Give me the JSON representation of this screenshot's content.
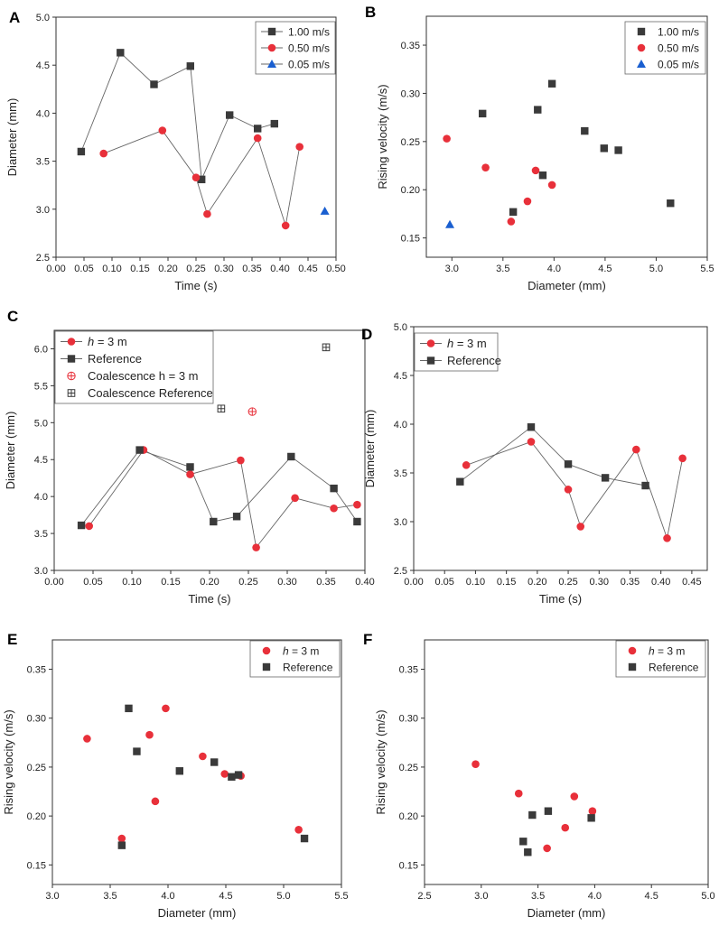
{
  "chart_data": [
    {
      "panel": "A",
      "type": "line",
      "xlabel": "Time (s)",
      "ylabel": "Diameter (mm)",
      "xlim": [
        0.0,
        0.5
      ],
      "ylim": [
        2.5,
        5.0
      ],
      "xticks": [
        "0.00",
        "0.05",
        "0.10",
        "0.15",
        "0.20",
        "0.25",
        "0.30",
        "0.35",
        "0.40",
        "0.45",
        "0.50"
      ],
      "yticks": [
        "2.5",
        "3.0",
        "3.5",
        "4.0",
        "4.5",
        "5.0"
      ],
      "legend_position": "top-right",
      "series": [
        {
          "name": "1.00 m/s",
          "marker": "square",
          "color": "#3a3a3a",
          "line": true,
          "x": [
            0.045,
            0.115,
            0.175,
            0.24,
            0.26,
            0.31,
            0.36,
            0.39
          ],
          "y": [
            3.6,
            4.63,
            4.3,
            4.49,
            3.31,
            3.98,
            3.84,
            3.89
          ]
        },
        {
          "name": "0.50 m/s",
          "marker": "circle",
          "color": "#e8303a",
          "line": true,
          "x": [
            0.085,
            0.19,
            0.25,
            0.27,
            0.36,
            0.41,
            0.435
          ],
          "y": [
            3.58,
            3.82,
            3.33,
            2.95,
            3.74,
            2.83,
            3.65
          ]
        },
        {
          "name": "0.05 m/s",
          "marker": "triangle",
          "color": "#1a5fd0",
          "line": true,
          "x": [
            0.48
          ],
          "y": [
            2.98
          ]
        }
      ]
    },
    {
      "panel": "B",
      "type": "scatter",
      "xlabel": "Diameter (mm)",
      "ylabel": "Rising velocity (m/s)",
      "xlim": [
        2.75,
        5.5
      ],
      "ylim": [
        0.13,
        0.38
      ],
      "xticks": [
        "3.0",
        "3.5",
        "4.0",
        "4.5",
        "5.0",
        "5.5"
      ],
      "yticks": [
        "0.15",
        "0.20",
        "0.25",
        "0.30",
        "0.35"
      ],
      "legend_position": "top-right",
      "series": [
        {
          "name": "1.00 m/s",
          "marker": "square",
          "color": "#3a3a3a",
          "line": false,
          "x": [
            3.3,
            3.6,
            3.84,
            3.89,
            3.98,
            4.3,
            4.49,
            4.63,
            5.14
          ],
          "y": [
            0.279,
            0.177,
            0.283,
            0.215,
            0.31,
            0.261,
            0.243,
            0.241,
            0.186
          ]
        },
        {
          "name": "0.50 m/s",
          "marker": "circle",
          "color": "#e8303a",
          "line": false,
          "x": [
            2.95,
            3.33,
            3.58,
            3.74,
            3.82,
            3.98
          ],
          "y": [
            0.253,
            0.223,
            0.167,
            0.188,
            0.22,
            0.205
          ]
        },
        {
          "name": "0.05 m/s",
          "marker": "triangle",
          "color": "#1a5fd0",
          "line": false,
          "x": [
            2.98
          ],
          "y": [
            0.164
          ]
        }
      ]
    },
    {
      "panel": "C",
      "type": "line",
      "xlabel": "Time (s)",
      "ylabel": "Diameter (mm)",
      "xlim": [
        0.0,
        0.4
      ],
      "ylim": [
        3.0,
        6.25
      ],
      "xticks": [
        "0.00",
        "0.05",
        "0.10",
        "0.15",
        "0.20",
        "0.25",
        "0.30",
        "0.35",
        "0.40"
      ],
      "yticks": [
        "3.0",
        "3.5",
        "4.0",
        "4.5",
        "5.0",
        "5.5",
        "6.0"
      ],
      "legend_position": "top-left",
      "series": [
        {
          "name": "h = 3 m",
          "italic_prefix": "h",
          "marker": "circle",
          "color": "#e8303a",
          "line": true,
          "x": [
            0.045,
            0.115,
            0.175,
            0.24,
            0.26,
            0.31,
            0.36,
            0.39
          ],
          "y": [
            3.6,
            4.63,
            4.3,
            4.49,
            3.31,
            3.98,
            3.84,
            3.89
          ]
        },
        {
          "name": "Reference",
          "marker": "square",
          "color": "#3a3a3a",
          "line": true,
          "x": [
            0.035,
            0.11,
            0.175,
            0.205,
            0.235,
            0.305,
            0.36,
            0.39
          ],
          "y": [
            3.61,
            4.63,
            4.4,
            3.66,
            3.73,
            4.54,
            4.11,
            3.66
          ]
        },
        {
          "name": "Coalescence h = 3 m",
          "italic_prefix": "h",
          "marker": "circle-plus",
          "color": "#e8303a",
          "line": false,
          "x": [
            0.255
          ],
          "y": [
            5.15
          ]
        },
        {
          "name": "Coalescence Reference",
          "marker": "square-plus",
          "color": "#3a3a3a",
          "line": false,
          "x": [
            0.215
          ],
          "y": [
            5.19
          ]
        },
        {
          "name": "",
          "marker": "square-plus",
          "color": "#3a3a3a",
          "line": false,
          "legend": false,
          "x": [
            0.35
          ],
          "y": [
            6.02
          ]
        }
      ]
    },
    {
      "panel": "D",
      "type": "line",
      "xlabel": "Time (s)",
      "ylabel": "Diameter (mm)",
      "xlim": [
        0.0,
        0.475
      ],
      "ylim": [
        2.5,
        5.0
      ],
      "xticks": [
        "0.00",
        "0.05",
        "0.10",
        "0.15",
        "0.20",
        "0.25",
        "0.30",
        "0.35",
        "0.40",
        "0.45"
      ],
      "yticks": [
        "2.5",
        "3.0",
        "3.5",
        "4.0",
        "4.5",
        "5.0"
      ],
      "legend_position": "top-left",
      "series": [
        {
          "name": "h = 3 m",
          "italic_prefix": "h",
          "marker": "circle",
          "color": "#e8303a",
          "line": true,
          "x": [
            0.085,
            0.19,
            0.25,
            0.27,
            0.36,
            0.41,
            0.435
          ],
          "y": [
            3.58,
            3.82,
            3.33,
            2.95,
            3.74,
            2.83,
            3.65
          ]
        },
        {
          "name": "Reference",
          "marker": "square",
          "color": "#3a3a3a",
          "line": true,
          "x": [
            0.075,
            0.19,
            0.25,
            0.31,
            0.375
          ],
          "y": [
            3.41,
            3.97,
            3.59,
            3.45,
            3.37
          ]
        }
      ]
    },
    {
      "panel": "E",
      "type": "scatter",
      "xlabel": "Diameter (mm)",
      "ylabel": "Rising velocity (m/s)",
      "xlim": [
        3.0,
        5.5
      ],
      "ylim": [
        0.13,
        0.38
      ],
      "xticks": [
        "3.0",
        "3.5",
        "4.0",
        "4.5",
        "5.0",
        "5.5"
      ],
      "yticks": [
        "0.15",
        "0.20",
        "0.25",
        "0.30",
        "0.35"
      ],
      "legend_position": "top-right",
      "series": [
        {
          "name": "h = 3 m",
          "italic_prefix": "h",
          "marker": "circle",
          "color": "#e8303a",
          "line": false,
          "x": [
            3.3,
            3.6,
            3.84,
            3.89,
            3.98,
            4.3,
            4.49,
            4.63,
            5.13
          ],
          "y": [
            0.279,
            0.177,
            0.283,
            0.215,
            0.31,
            0.261,
            0.243,
            0.241,
            0.186
          ]
        },
        {
          "name": "Reference",
          "marker": "square",
          "color": "#3a3a3a",
          "line": false,
          "x": [
            3.6,
            3.66,
            3.73,
            4.1,
            4.4,
            4.55,
            4.61,
            5.18
          ],
          "y": [
            0.17,
            0.31,
            0.266,
            0.246,
            0.255,
            0.24,
            0.242,
            0.177
          ]
        }
      ]
    },
    {
      "panel": "F",
      "type": "scatter",
      "xlabel": "Diameter (mm)",
      "ylabel": "Rising velocity (m/s)",
      "xlim": [
        2.5,
        5.0
      ],
      "ylim": [
        0.13,
        0.38
      ],
      "xticks": [
        "2.5",
        "3.0",
        "3.5",
        "4.0",
        "4.5",
        "5.0"
      ],
      "yticks": [
        "0.15",
        "0.20",
        "0.25",
        "0.30",
        "0.35"
      ],
      "legend_position": "top-right",
      "series": [
        {
          "name": "h = 3 m",
          "italic_prefix": "h",
          "marker": "circle",
          "color": "#e8303a",
          "line": false,
          "x": [
            2.95,
            3.33,
            3.58,
            3.74,
            3.82,
            3.98
          ],
          "y": [
            0.253,
            0.223,
            0.167,
            0.188,
            0.22,
            0.205
          ]
        },
        {
          "name": "Reference",
          "marker": "square",
          "color": "#3a3a3a",
          "line": false,
          "x": [
            3.37,
            3.41,
            3.45,
            3.59,
            3.97
          ],
          "y": [
            0.174,
            0.163,
            0.201,
            0.205,
            0.198
          ]
        }
      ]
    }
  ]
}
